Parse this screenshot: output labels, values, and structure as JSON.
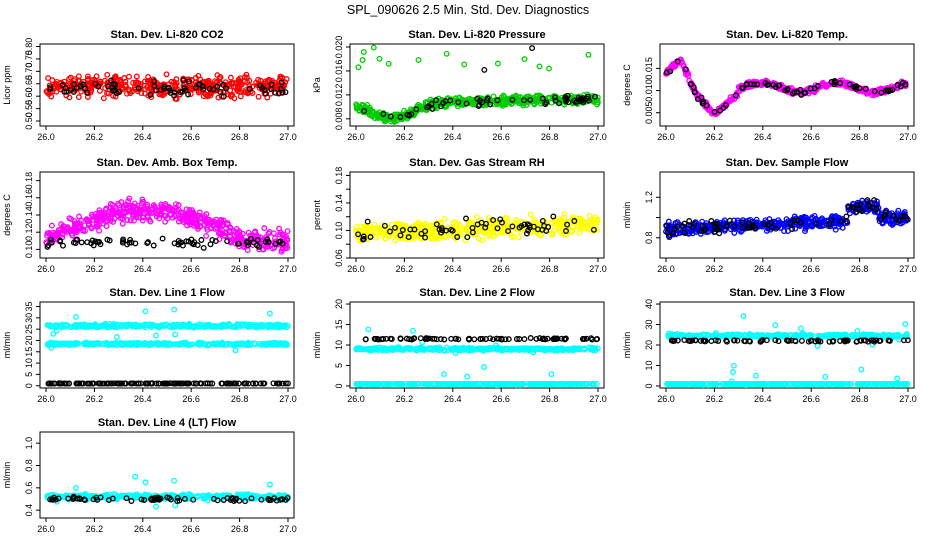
{
  "title": "SPL_090626  2.5 Min. Std. Dev. Diagnostics",
  "chart_data": [
    {
      "type": "scatter",
      "title": "Stan. Dev. Li-820 CO2",
      "xlabel": "",
      "ylabel": "Licor ppm",
      "xlim": [
        26.0,
        27.0
      ],
      "ylim": [
        0.48,
        0.81
      ],
      "xticks": [
        "26.0",
        "26.2",
        "26.4",
        "26.6",
        "26.8",
        "27.0"
      ],
      "yticks": [
        0.5,
        0.55,
        0.6,
        0.65,
        0.7,
        0.75,
        0.8
      ],
      "ytick_labels": [
        "0.50",
        "0.55",
        "0.60",
        "0.65",
        "0.70",
        "0.75",
        "0.80"
      ],
      "series": [
        {
          "color": "#ff0000",
          "pattern": "noise",
          "center": 0.64,
          "spread": 0.06,
          "n": 420
        },
        {
          "color": "#000000",
          "pattern": "noise",
          "center": 0.63,
          "spread": 0.045,
          "n": 70
        }
      ]
    },
    {
      "type": "scatter",
      "title": "Stan. Dev. Li-820 Pressure",
      "xlabel": "",
      "ylabel": "kPa",
      "xlim": [
        26.0,
        27.0
      ],
      "ylim": [
        0.0068,
        0.0205
      ],
      "xticks": [
        "26.0",
        "26.2",
        "26.4",
        "26.6",
        "26.8",
        "27.0"
      ],
      "yticks": [
        0.008,
        0.012,
        0.016,
        0.02
      ],
      "ytick_labels": [
        "0.008",
        "0.012",
        "0.016",
        "0.020"
      ],
      "series": [
        {
          "color": "#00cc00",
          "pattern": "pressure",
          "n": 520
        },
        {
          "color": "#000000",
          "pattern": "pressure",
          "n": 60
        }
      ]
    },
    {
      "type": "scatter",
      "title": "Stan. Dev. Li-820 Temp.",
      "xlabel": "",
      "ylabel": "degrees C",
      "xlim": [
        26.0,
        27.0
      ],
      "ylim": [
        0.002,
        0.0205
      ],
      "xticks": [
        "26.0",
        "26.2",
        "26.4",
        "26.6",
        "26.8",
        "27.0"
      ],
      "yticks": [
        0.005,
        0.01,
        0.015
      ],
      "ytick_labels": [
        "0.005",
        "0.010",
        "0.015"
      ],
      "series": [
        {
          "color": "#ff00ff",
          "pattern": "temp",
          "n": 520
        },
        {
          "color": "#000000",
          "pattern": "temp",
          "n": 70
        }
      ]
    },
    {
      "type": "scatter",
      "title": "Stan. Dev. Amb. Box Temp.",
      "xlabel": "",
      "ylabel": "degrees C",
      "xlim": [
        26.0,
        27.0
      ],
      "ylim": [
        0.09,
        0.19
      ],
      "xticks": [
        "26.0",
        "26.2",
        "26.4",
        "26.6",
        "26.8",
        "27.0"
      ],
      "yticks": [
        0.1,
        0.12,
        0.14,
        0.16,
        0.18
      ],
      "ytick_labels": [
        "0.10",
        "0.12",
        "0.14",
        "0.16",
        "0.18"
      ],
      "series": [
        {
          "color": "#ff00ff",
          "pattern": "ambbox",
          "n": 480
        },
        {
          "color": "#000000",
          "pattern": "ambboxblack",
          "n": 70
        }
      ]
    },
    {
      "type": "scatter",
      "title": "Stan. Dev. Gas Stream RH",
      "xlabel": "",
      "ylabel": "percent",
      "xlim": [
        26.0,
        27.0
      ],
      "ylim": [
        0.06,
        0.185
      ],
      "xticks": [
        "26.0",
        "26.2",
        "26.4",
        "26.6",
        "26.8",
        "27.0"
      ],
      "yticks": [
        0.06,
        0.08,
        0.1,
        0.12,
        0.14,
        0.16,
        0.18
      ],
      "ytick_labels": [
        "0.06",
        "",
        "0.10",
        "",
        "0.14",
        "",
        "0.18"
      ],
      "series": [
        {
          "color": "#ffff00",
          "pattern": "rh",
          "n": 520
        },
        {
          "color": "#000000",
          "pattern": "rh",
          "n": 60
        }
      ]
    },
    {
      "type": "scatter",
      "title": "Stan. Dev. Sample Flow",
      "xlabel": "",
      "ylabel": "ml/min",
      "xlim": [
        26.0,
        27.0
      ],
      "ylim": [
        0.6,
        1.45
      ],
      "xticks": [
        "26.0",
        "26.2",
        "26.4",
        "26.6",
        "26.8",
        "27.0"
      ],
      "yticks": [
        0.8,
        1.0,
        1.2
      ],
      "ytick_labels": [
        "0.8",
        "",
        "1.2"
      ],
      "series": [
        {
          "color": "#0000ff",
          "pattern": "flow",
          "n": 520
        },
        {
          "color": "#000000",
          "pattern": "flow",
          "n": 80
        }
      ]
    },
    {
      "type": "scatter",
      "title": "Stan. Dev. Line 1 Flow",
      "xlabel": "",
      "ylabel": "ml/min",
      "xlim": [
        26.0,
        27.0
      ],
      "ylim": [
        -1,
        37
      ],
      "xticks": [
        "26.0",
        "26.2",
        "26.4",
        "26.6",
        "26.8",
        "27.0"
      ],
      "yticks": [
        0,
        5,
        10,
        15,
        20,
        25,
        30,
        35
      ],
      "ytick_labels": [
        "0",
        "5",
        "10",
        "15",
        "20",
        "25",
        "30",
        "35"
      ],
      "series": [
        {
          "color": "#00ffff",
          "pattern": "band",
          "center": 26.5,
          "spread": 1.2,
          "n": 300
        },
        {
          "color": "#00ffff",
          "pattern": "band",
          "center": 18.5,
          "spread": 0.8,
          "n": 300
        },
        {
          "color": "#000000",
          "pattern": "band",
          "center": 1.0,
          "spread": 0.15,
          "n": 140
        }
      ]
    },
    {
      "type": "scatter",
      "title": "Stan. Dev. Line 2 Flow",
      "xlabel": "",
      "ylabel": "ml/min",
      "xlim": [
        26.0,
        27.0
      ],
      "ylim": [
        -0.5,
        20.5
      ],
      "xticks": [
        "26.0",
        "26.2",
        "26.4",
        "26.6",
        "26.8",
        "27.0"
      ],
      "yticks": [
        0,
        5,
        10,
        15,
        20
      ],
      "ytick_labels": [
        "0",
        "5",
        "10",
        "15",
        "20"
      ],
      "series": [
        {
          "color": "#00ffff",
          "pattern": "band",
          "center": 9.0,
          "spread": 0.5,
          "n": 320
        },
        {
          "color": "#00ffff",
          "pattern": "band",
          "center": 0.5,
          "spread": 0.05,
          "n": 300
        },
        {
          "color": "#000000",
          "pattern": "band",
          "center": 11.5,
          "spread": 0.25,
          "n": 80
        }
      ]
    },
    {
      "type": "scatter",
      "title": "Stan. Dev. Line 3 Flow",
      "xlabel": "",
      "ylabel": "ml/min",
      "xlim": [
        26.0,
        27.0
      ],
      "ylim": [
        -1,
        41
      ],
      "xticks": [
        "26.0",
        "26.2",
        "26.4",
        "26.6",
        "26.8",
        "27.0"
      ],
      "yticks": [
        0,
        10,
        20,
        30,
        40
      ],
      "ytick_labels": [
        "0",
        "10",
        "20",
        "30",
        "40"
      ],
      "series": [
        {
          "color": "#00ffff",
          "pattern": "band",
          "center": 24.5,
          "spread": 1.2,
          "n": 320
        },
        {
          "color": "#00ffff",
          "pattern": "band",
          "center": 1.0,
          "spread": 0.05,
          "n": 300
        },
        {
          "color": "#000000",
          "pattern": "band",
          "center": 22.0,
          "spread": 0.6,
          "n": 80
        }
      ]
    },
    {
      "type": "scatter",
      "title": "Stan. Dev. Line 4 (LT) Flow",
      "xlabel": "",
      "ylabel": "ml/min",
      "xlim": [
        26.0,
        27.0
      ],
      "ylim": [
        0.33,
        1.1
      ],
      "xticks": [
        "26.0",
        "26.2",
        "26.4",
        "26.6",
        "26.8",
        "27.0"
      ],
      "yticks": [
        0.4,
        0.6,
        0.8,
        1.0
      ],
      "ytick_labels": [
        "0.4",
        "0.6",
        "0.8",
        "1.0"
      ],
      "series": [
        {
          "color": "#00ffff",
          "pattern": "band",
          "center": 0.52,
          "spread": 0.035,
          "n": 360
        },
        {
          "color": "#000000",
          "pattern": "band",
          "center": 0.5,
          "spread": 0.03,
          "n": 70
        }
      ]
    }
  ]
}
